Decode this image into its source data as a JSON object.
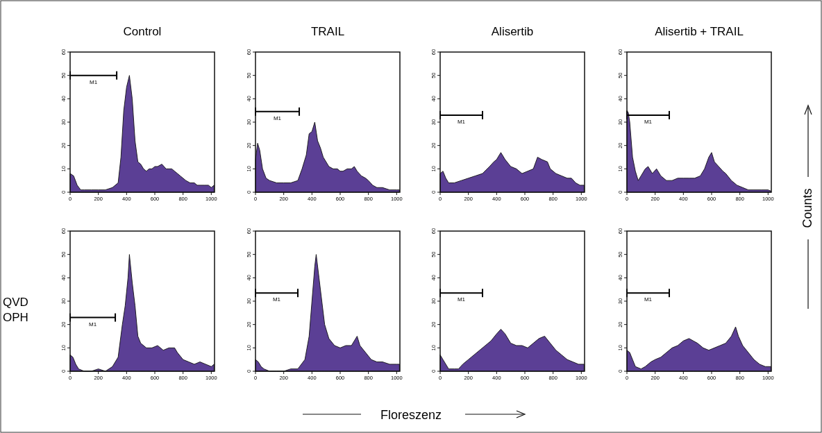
{
  "chart_data": [
    {
      "type": "area",
      "title": "Control",
      "xlim": [
        0,
        1023
      ],
      "ylim": [
        0,
        60
      ],
      "xticks": [
        0,
        200,
        400,
        600,
        800,
        1000
      ],
      "yticks": [
        0,
        10,
        20,
        30,
        40,
        50,
        60
      ],
      "annotations": [
        "Floreszenz",
        "Counts"
      ],
      "series": [
        {
          "color": "#5b3f95",
          "x": [
            0,
            25,
            50,
            75,
            100,
            150,
            200,
            250,
            300,
            340,
            360,
            380,
            400,
            420,
            440,
            460,
            480,
            500,
            520,
            540,
            560,
            580,
            600,
            620,
            650,
            680,
            700,
            720,
            740,
            760,
            780,
            800,
            820,
            850,
            880,
            900,
            920,
            950,
            980,
            1000,
            1020
          ],
          "values": [
            8,
            7,
            3,
            1,
            1,
            1,
            1,
            1,
            2,
            4,
            15,
            35,
            45,
            50,
            40,
            22,
            13,
            12,
            10,
            9,
            10,
            10,
            11,
            11,
            12,
            10,
            10,
            10,
            9,
            8,
            7,
            6,
            5,
            4,
            4,
            3,
            3,
            3,
            3,
            2,
            3
          ]
        },
        {
          "type": "line",
          "name": "M1",
          "color": "#000000",
          "x": [
            0,
            330
          ],
          "values": [
            50,
            50
          ]
        }
      ]
    },
    {
      "type": "area",
      "title": "TRAIL",
      "xlim": [
        0,
        1023
      ],
      "ylim": [
        0,
        60
      ],
      "xticks": [
        0,
        200,
        400,
        600,
        800,
        1000
      ],
      "yticks": [
        0,
        10,
        20,
        30,
        40,
        50,
        60
      ],
      "series": [
        {
          "color": "#5b3f95",
          "x": [
            0,
            15,
            30,
            50,
            75,
            100,
            150,
            200,
            250,
            300,
            330,
            360,
            380,
            400,
            420,
            440,
            460,
            480,
            500,
            520,
            550,
            580,
            600,
            620,
            650,
            680,
            700,
            720,
            750,
            780,
            800,
            830,
            860,
            900,
            950,
            1000,
            1020
          ],
          "values": [
            14,
            21,
            18,
            10,
            6,
            5,
            4,
            4,
            4,
            5,
            10,
            16,
            25,
            26,
            30,
            22,
            19,
            15,
            13,
            11,
            10,
            10,
            9,
            9,
            10,
            10,
            11,
            9,
            7,
            6,
            5,
            3,
            2,
            2,
            1,
            1,
            1
          ]
        },
        {
          "type": "line",
          "name": "M1",
          "color": "#000000",
          "x": [
            0,
            310
          ],
          "values": [
            34.5,
            34.5
          ]
        }
      ]
    },
    {
      "type": "area",
      "title": "Alisertib",
      "xlim": [
        0,
        1023
      ],
      "ylim": [
        0,
        60
      ],
      "xticks": [
        0,
        200,
        400,
        600,
        800,
        1000
      ],
      "yticks": [
        0,
        10,
        20,
        30,
        40,
        50,
        60
      ],
      "series": [
        {
          "color": "#5b3f95",
          "x": [
            0,
            20,
            40,
            60,
            100,
            150,
            200,
            250,
            300,
            350,
            380,
            400,
            430,
            460,
            500,
            540,
            580,
            620,
            660,
            690,
            720,
            760,
            780,
            820,
            860,
            900,
            930,
            960,
            990,
            1020
          ],
          "values": [
            8,
            9,
            6,
            4,
            4,
            5,
            6,
            7,
            8,
            11,
            13,
            14,
            17,
            14,
            11,
            10,
            8,
            9,
            10,
            15,
            14,
            13,
            10,
            8,
            7,
            6,
            6,
            4,
            3,
            3
          ]
        },
        {
          "type": "line",
          "name": "M1",
          "color": "#000000",
          "x": [
            0,
            300
          ],
          "values": [
            33,
            33
          ]
        }
      ]
    },
    {
      "type": "area",
      "title": "Alisertib + TRAIL",
      "xlim": [
        0,
        1023
      ],
      "ylim": [
        0,
        60
      ],
      "xticks": [
        0,
        200,
        400,
        600,
        800,
        1000
      ],
      "yticks": [
        0,
        10,
        20,
        30,
        40,
        50,
        60
      ],
      "series": [
        {
          "color": "#5b3f95",
          "x": [
            0,
            10,
            20,
            40,
            60,
            80,
            100,
            130,
            150,
            180,
            210,
            240,
            280,
            320,
            360,
            400,
            440,
            480,
            520,
            550,
            580,
            600,
            620,
            650,
            680,
            700,
            740,
            780,
            820,
            860,
            900,
            950,
            1000,
            1020
          ],
          "values": [
            35,
            34,
            30,
            15,
            9,
            5,
            7,
            10,
            11,
            8,
            10,
            7,
            5,
            5,
            6,
            6,
            6,
            6,
            7,
            10,
            15,
            17,
            13,
            11,
            9,
            8,
            5,
            3,
            2,
            1,
            1,
            1,
            1,
            0.5
          ]
        },
        {
          "type": "line",
          "name": "M1",
          "color": "#000000",
          "x": [
            0,
            300
          ],
          "values": [
            33,
            33
          ]
        }
      ]
    },
    {
      "type": "area",
      "xlim": [
        0,
        1023
      ],
      "ylim": [
        0,
        60
      ],
      "xticks": [
        0,
        200,
        400,
        600,
        800,
        1000
      ],
      "yticks": [
        0,
        10,
        20,
        30,
        40,
        50,
        60
      ],
      "annotations": [
        "QVD OPH"
      ],
      "series": [
        {
          "color": "#5b3f95",
          "x": [
            0,
            20,
            40,
            60,
            100,
            150,
            200,
            250,
            300,
            340,
            370,
            390,
            410,
            420,
            440,
            460,
            480,
            500,
            540,
            580,
            620,
            660,
            700,
            740,
            760,
            800,
            840,
            880,
            920,
            960,
            1000,
            1020
          ],
          "values": [
            7,
            6,
            3,
            1,
            0,
            0,
            1,
            0,
            2,
            6,
            20,
            28,
            40,
            50,
            38,
            28,
            15,
            12,
            10,
            10,
            11,
            9,
            10,
            10,
            8,
            5,
            4,
            3,
            4,
            3,
            2,
            3
          ]
        },
        {
          "type": "line",
          "name": "M1",
          "color": "#000000",
          "x": [
            0,
            320
          ],
          "values": [
            23,
            23
          ]
        }
      ]
    },
    {
      "type": "area",
      "xlim": [
        0,
        1023
      ],
      "ylim": [
        0,
        60
      ],
      "xticks": [
        0,
        200,
        400,
        600,
        800,
        1000
      ],
      "yticks": [
        0,
        10,
        20,
        30,
        40,
        50,
        60
      ],
      "series": [
        {
          "color": "#5b3f95",
          "x": [
            0,
            20,
            40,
            60,
            100,
            150,
            200,
            250,
            300,
            350,
            380,
            400,
            420,
            430,
            450,
            470,
            490,
            520,
            560,
            600,
            640,
            680,
            700,
            720,
            740,
            780,
            820,
            860,
            900,
            950,
            1000,
            1020
          ],
          "values": [
            5,
            4,
            2,
            1,
            0,
            0,
            0,
            1,
            1,
            5,
            15,
            30,
            45,
            50,
            40,
            30,
            20,
            14,
            11,
            10,
            11,
            11,
            13,
            15,
            11,
            8,
            5,
            4,
            4,
            3,
            3,
            3
          ]
        },
        {
          "type": "line",
          "name": "M1",
          "color": "#000000",
          "x": [
            0,
            300
          ],
          "values": [
            33.5,
            33.5
          ]
        }
      ]
    },
    {
      "type": "area",
      "xlim": [
        0,
        1023
      ],
      "ylim": [
        0,
        60
      ],
      "xticks": [
        0,
        200,
        400,
        600,
        800,
        1000
      ],
      "yticks": [
        0,
        10,
        20,
        30,
        40,
        50,
        60
      ],
      "series": [
        {
          "color": "#5b3f95",
          "x": [
            0,
            20,
            40,
            60,
            100,
            130,
            160,
            200,
            240,
            280,
            320,
            360,
            400,
            430,
            460,
            500,
            540,
            580,
            620,
            660,
            700,
            740,
            780,
            820,
            860,
            900,
            940,
            980,
            1020
          ],
          "values": [
            7,
            5,
            3,
            1,
            1,
            1,
            3,
            5,
            7,
            9,
            11,
            13,
            16,
            18,
            16,
            12,
            11,
            11,
            10,
            12,
            14,
            15,
            12,
            9,
            7,
            5,
            4,
            3,
            3
          ]
        },
        {
          "type": "line",
          "name": "M1",
          "color": "#000000",
          "x": [
            0,
            300
          ],
          "values": [
            33.5,
            33.5
          ]
        }
      ]
    },
    {
      "type": "area",
      "xlim": [
        0,
        1023
      ],
      "ylim": [
        0,
        60
      ],
      "xticks": [
        0,
        200,
        400,
        600,
        800,
        1000
      ],
      "yticks": [
        0,
        10,
        20,
        30,
        40,
        50,
        60
      ],
      "series": [
        {
          "color": "#5b3f95",
          "x": [
            0,
            20,
            40,
            60,
            100,
            130,
            170,
            200,
            240,
            280,
            320,
            360,
            400,
            440,
            470,
            500,
            540,
            580,
            620,
            660,
            700,
            740,
            770,
            790,
            820,
            860,
            900,
            940,
            980,
            1020
          ],
          "values": [
            9,
            8,
            5,
            2,
            1,
            2,
            4,
            5,
            6,
            8,
            10,
            11,
            13,
            14,
            13,
            12,
            10,
            9,
            10,
            11,
            12,
            15,
            19,
            15,
            11,
            8,
            5,
            3,
            2,
            2
          ]
        },
        {
          "type": "line",
          "name": "M1",
          "color": "#000000",
          "x": [
            0,
            300
          ],
          "values": [
            33.5,
            33.5
          ]
        }
      ]
    }
  ]
}
